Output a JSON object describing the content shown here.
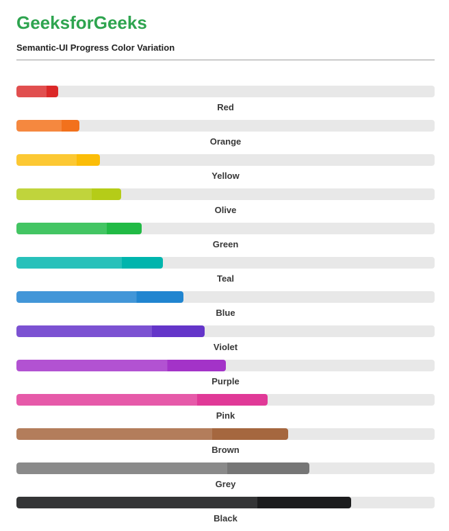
{
  "page": {
    "title": "GeeksforGeeks",
    "subtitle": "Semantic-UI Progress Color Variation"
  },
  "theme": {
    "title_color": "#2ea44f",
    "subtitle_color": "#212121",
    "divider_color": "#9c9c9c",
    "track_color": "#e8e8e8",
    "label_color": "#373737",
    "background": "#ffffff",
    "fill_split_percent": 72
  },
  "progress_bars": [
    {
      "label": "Red",
      "percent": 10,
      "color": "#DB2828",
      "color_light": "#E14F4F"
    },
    {
      "label": "Orange",
      "percent": 15,
      "color": "#F2711C",
      "color_light": "#F5883F"
    },
    {
      "label": "Yellow",
      "percent": 20,
      "color": "#FBBD08",
      "color_light": "#FCC833"
    },
    {
      "label": "Olive",
      "percent": 25,
      "color": "#B5CC18",
      "color_light": "#C0D43C"
    },
    {
      "label": "Green",
      "percent": 30,
      "color": "#21BA45",
      "color_light": "#43C563"
    },
    {
      "label": "Teal",
      "percent": 35,
      "color": "#00B5AD",
      "color_light": "#28C1BA"
    },
    {
      "label": "Blue",
      "percent": 40,
      "color": "#2185D0",
      "color_light": "#4296D8"
    },
    {
      "label": "Violet",
      "percent": 45,
      "color": "#6435C9",
      "color_light": "#7C52D2"
    },
    {
      "label": "Purple",
      "percent": 50,
      "color": "#A333C8",
      "color_light": "#B252D2"
    },
    {
      "label": "Pink",
      "percent": 60,
      "color": "#E03997",
      "color_light": "#E65AA9"
    },
    {
      "label": "Brown",
      "percent": 65,
      "color": "#A5673F",
      "color_light": "#B37D5B"
    },
    {
      "label": "Grey",
      "percent": 70,
      "color": "#767676",
      "color_light": "#8A8A8A"
    },
    {
      "label": "Black",
      "percent": 80,
      "color": "#1B1C1D",
      "color_light": "#343536"
    }
  ]
}
